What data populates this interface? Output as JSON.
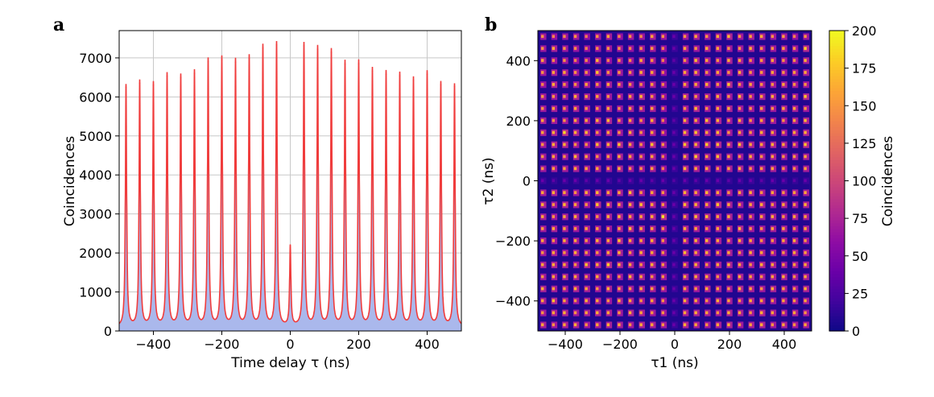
{
  "chart_data": [
    {
      "type": "line",
      "panel_label": "a",
      "xlabel": "Time delay τ (ns)",
      "ylabel": "Coincidences",
      "xlim": [
        -500,
        500
      ],
      "ylim": [
        0,
        7700
      ],
      "xticks": [
        "−400",
        "−200",
        "0",
        "200",
        "400"
      ],
      "xtick_values": [
        -400,
        -200,
        0,
        200,
        400
      ],
      "yticks": [
        "0",
        "1000",
        "2000",
        "3000",
        "4000",
        "5000",
        "6000",
        "7000"
      ],
      "ytick_values": [
        0,
        1000,
        2000,
        3000,
        4000,
        5000,
        6000,
        7000
      ],
      "grid": true,
      "peak_delays": [
        -480,
        -440,
        -400,
        -360,
        -320,
        -280,
        -240,
        -200,
        -160,
        -120,
        -80,
        -40,
        0,
        40,
        80,
        120,
        160,
        200,
        240,
        280,
        320,
        360,
        400,
        440,
        480
      ],
      "peak_heights": [
        6250,
        6350,
        6300,
        6530,
        6490,
        6600,
        6900,
        6950,
        6890,
        6980,
        7250,
        7330,
        2100,
        7310,
        7220,
        7140,
        6840,
        6850,
        6660,
        6580,
        6540,
        6420,
        6580,
        6310,
        6270
      ],
      "baseline": 100,
      "colors": {
        "fit": "#f03c3c",
        "data": "#aab8ec"
      }
    },
    {
      "type": "heatmap",
      "panel_label": "b",
      "xlabel": "τ1 (ns)",
      "ylabel": "τ2 (ns)",
      "xlim": [
        -500,
        500
      ],
      "ylim": [
        -500,
        500
      ],
      "xticks": [
        "−400",
        "−200",
        "0",
        "200",
        "400"
      ],
      "xtick_values": [
        -400,
        -200,
        0,
        200,
        400
      ],
      "yticks": [
        "−400",
        "−200",
        "0",
        "200",
        "400"
      ],
      "ytick_values": [
        -400,
        -200,
        0,
        200,
        400
      ],
      "peak_delays": [
        -480,
        -440,
        -400,
        -360,
        -320,
        -280,
        -240,
        -200,
        -160,
        -120,
        -80,
        -40,
        0,
        40,
        80,
        120,
        160,
        200,
        240,
        280,
        320,
        360,
        400,
        440,
        480
      ],
      "background": 8,
      "colormap": "plasma",
      "colorbar": {
        "label": "Coincidences",
        "range": [
          0,
          200
        ],
        "ticks": [
          "0",
          "25",
          "50",
          "75",
          "100",
          "125",
          "150",
          "175",
          "200"
        ],
        "tick_values": [
          0,
          25,
          50,
          75,
          100,
          125,
          150,
          175,
          200
        ]
      },
      "matrix_rows_from_top_tau2": [
        [
          150,
          140,
          145,
          150,
          135,
          150,
          160,
          140,
          150,
          145,
          160,
          150,
          40,
          150,
          160,
          150,
          165,
          170,
          150,
          160,
          165,
          150,
          155,
          140,
          150
        ],
        [
          150,
          165,
          150,
          145,
          140,
          145,
          150,
          150,
          140,
          150,
          155,
          140,
          40,
          160,
          150,
          165,
          160,
          150,
          150,
          165,
          150,
          150,
          160,
          150,
          180
        ],
        [
          160,
          145,
          150,
          140,
          145,
          170,
          140,
          150,
          145,
          165,
          150,
          140,
          35,
          150,
          170,
          160,
          150,
          165,
          160,
          145,
          155,
          160,
          150,
          150,
          165
        ],
        [
          150,
          160,
          160,
          150,
          150,
          175,
          150,
          150,
          150,
          165,
          160,
          135,
          40,
          160,
          165,
          150,
          160,
          150,
          165,
          150,
          155,
          160,
          150,
          155,
          160
        ],
        [
          140,
          165,
          150,
          150,
          160,
          150,
          160,
          155,
          150,
          145,
          155,
          140,
          40,
          160,
          160,
          165,
          150,
          175,
          150,
          160,
          150,
          150,
          160,
          150,
          150
        ],
        [
          150,
          150,
          150,
          165,
          160,
          160,
          150,
          150,
          160,
          170,
          150,
          140,
          40,
          170,
          150,
          160,
          165,
          150,
          175,
          150,
          160,
          165,
          160,
          150,
          175
        ],
        [
          150,
          160,
          150,
          160,
          150,
          150,
          160,
          145,
          160,
          155,
          160,
          140,
          40,
          150,
          170,
          150,
          160,
          165,
          150,
          150,
          160,
          150,
          165,
          160,
          150
        ],
        [
          160,
          150,
          150,
          160,
          160,
          165,
          170,
          150,
          160,
          150,
          165,
          140,
          35,
          165,
          160,
          175,
          165,
          150,
          165,
          150,
          160,
          150,
          150,
          160,
          170
        ],
        [
          160,
          165,
          185,
          165,
          170,
          150,
          160,
          150,
          165,
          150,
          160,
          140,
          40,
          170,
          175,
          160,
          170,
          150,
          160,
          150,
          165,
          160,
          150,
          160,
          165
        ],
        [
          150,
          165,
          165,
          150,
          150,
          170,
          165,
          175,
          160,
          150,
          175,
          150,
          40,
          175,
          165,
          180,
          170,
          160,
          175,
          160,
          160,
          165,
          160,
          150,
          175
        ],
        [
          150,
          160,
          150,
          170,
          160,
          150,
          155,
          165,
          160,
          150,
          160,
          140,
          40,
          165,
          180,
          160,
          175,
          160,
          150,
          165,
          150,
          160,
          150,
          155,
          160
        ],
        [
          150,
          160,
          155,
          160,
          160,
          160,
          150,
          165,
          150,
          150,
          160,
          140,
          40,
          170,
          160,
          165,
          150,
          160,
          165,
          150,
          155,
          160,
          150,
          150,
          155
        ],
        [
          40,
          35,
          40,
          40,
          35,
          40,
          40,
          35,
          40,
          40,
          35,
          40,
          30,
          40,
          35,
          40,
          40,
          35,
          40,
          40,
          35,
          40,
          40,
          35,
          40
        ],
        [
          160,
          165,
          160,
          150,
          165,
          170,
          160,
          160,
          175,
          150,
          160,
          150,
          40,
          165,
          160,
          170,
          160,
          150,
          160,
          165,
          150,
          160,
          150,
          155,
          160
        ],
        [
          165,
          150,
          170,
          160,
          150,
          175,
          170,
          160,
          165,
          175,
          160,
          150,
          40,
          170,
          165,
          160,
          175,
          160,
          150,
          160,
          165,
          150,
          160,
          150,
          165
        ],
        [
          160,
          150,
          160,
          165,
          160,
          150,
          165,
          170,
          160,
          160,
          165,
          190,
          40,
          160,
          170,
          175,
          160,
          165,
          150,
          150,
          160,
          165,
          150,
          160,
          155
        ],
        [
          155,
          165,
          160,
          150,
          160,
          155,
          150,
          160,
          175,
          165,
          160,
          150,
          40,
          165,
          160,
          150,
          160,
          165,
          170,
          150,
          150,
          160,
          165,
          150,
          160
        ],
        [
          160,
          150,
          165,
          160,
          150,
          165,
          160,
          175,
          160,
          160,
          165,
          150,
          40,
          160,
          165,
          170,
          160,
          150,
          165,
          160,
          150,
          150,
          160,
          165,
          150
        ],
        [
          150,
          160,
          150,
          165,
          155,
          150,
          160,
          165,
          150,
          165,
          160,
          150,
          40,
          170,
          160,
          165,
          155,
          160,
          150,
          165,
          160,
          150,
          150,
          160,
          155
        ],
        [
          160,
          165,
          160,
          150,
          175,
          160,
          180,
          165,
          160,
          150,
          165,
          150,
          40,
          160,
          165,
          150,
          160,
          165,
          160,
          150,
          165,
          160,
          150,
          155,
          160
        ],
        [
          150,
          160,
          165,
          160,
          150,
          165,
          160,
          150,
          170,
          160,
          150,
          150,
          40,
          165,
          160,
          165,
          150,
          160,
          165,
          160,
          150,
          160,
          165,
          150,
          160
        ],
        [
          165,
          160,
          150,
          165,
          160,
          150,
          165,
          160,
          150,
          165,
          160,
          150,
          40,
          160,
          150,
          165,
          160,
          150,
          170,
          160,
          150,
          165,
          160,
          150,
          165
        ],
        [
          160,
          175,
          160,
          150,
          165,
          160,
          150,
          165,
          160,
          150,
          160,
          150,
          40,
          165,
          160,
          150,
          165,
          160,
          150,
          165,
          160,
          150,
          160,
          155,
          160
        ],
        [
          150,
          160,
          165,
          150,
          160,
          165,
          160,
          150,
          165,
          160,
          150,
          150,
          40,
          160,
          165,
          160,
          150,
          165,
          160,
          150,
          165,
          160,
          150,
          160,
          150
        ],
        [
          160,
          150,
          160,
          165,
          150,
          160,
          165,
          160,
          150,
          165,
          160,
          150,
          40,
          165,
          160,
          150,
          160,
          165,
          150,
          160,
          165,
          150,
          160,
          150,
          160
        ]
      ]
    }
  ]
}
